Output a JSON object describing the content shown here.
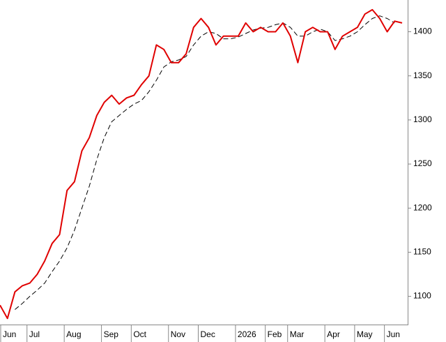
{
  "chart_data": {
    "type": "line",
    "categories": [
      "Jun",
      null,
      null,
      null,
      "Jul",
      null,
      null,
      null,
      null,
      "Aug",
      null,
      null,
      null,
      null,
      "Sep",
      null,
      null,
      null,
      "Oct",
      null,
      null,
      null,
      null,
      "Nov",
      null,
      null,
      null,
      "Dec",
      null,
      null,
      null,
      null,
      "2026",
      null,
      null,
      null,
      "Feb",
      null,
      null,
      "Mar",
      null,
      null,
      null,
      null,
      "Apr",
      null,
      null,
      null,
      "May",
      null,
      null,
      null,
      "Jun",
      null,
      null
    ],
    "series": [
      {
        "color": "#e00000",
        "dash": false,
        "values": [
          1090,
          1075,
          1105,
          1112,
          1115,
          1125,
          1140,
          1160,
          1170,
          1220,
          1230,
          1265,
          1280,
          1305,
          1320,
          1328,
          1318,
          1325,
          1328,
          1340,
          1350,
          1385,
          1380,
          1365,
          1365,
          1375,
          1405,
          1415,
          1405,
          1385,
          1395,
          1395,
          1395,
          1410,
          1400,
          1405,
          1400,
          1400,
          1410,
          1395,
          1365,
          1400,
          1405,
          1400,
          1400,
          1380,
          1395,
          1400,
          1405,
          1420,
          1425,
          1415,
          1400,
          1412,
          1410
        ]
      },
      {
        "color": "#000000",
        "dash": true,
        "values": [
          null,
          null,
          1085,
          1092,
          1100,
          1107,
          1115,
          1128,
          1140,
          1155,
          1175,
          1200,
          1225,
          1255,
          1280,
          1298,
          1305,
          1312,
          1318,
          1322,
          1332,
          1345,
          1360,
          1366,
          1368,
          1372,
          1385,
          1395,
          1400,
          1398,
          1392,
          1392,
          1394,
          1398,
          1402,
          1404,
          1405,
          1408,
          1410,
          1405,
          1395,
          1395,
          1400,
          1403,
          1400,
          1390,
          1392,
          1395,
          1400,
          1408,
          1415,
          1418,
          1415,
          1410,
          null
        ]
      }
    ],
    "ylim": [
      1068,
      1436
    ],
    "yticks": [
      1100,
      1150,
      1200,
      1250,
      1300,
      1350,
      1400
    ],
    "grid": false
  }
}
